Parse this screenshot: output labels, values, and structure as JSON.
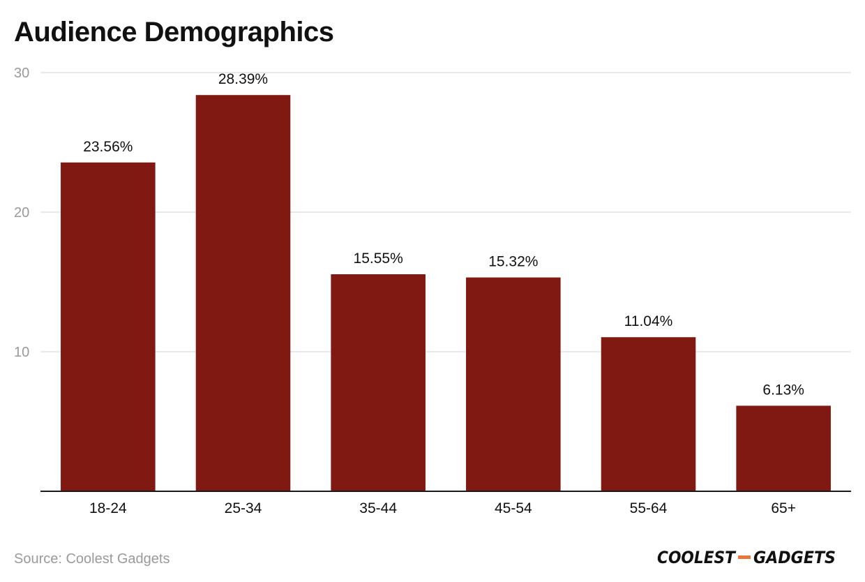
{
  "chart_data": {
    "type": "bar",
    "title": "Audience Demographics",
    "categories": [
      "18-24",
      "25-34",
      "35-44",
      "45-54",
      "55-64",
      "65+"
    ],
    "values": [
      23.56,
      28.39,
      15.55,
      15.32,
      11.04,
      6.13
    ],
    "value_labels": [
      "23.56%",
      "28.39%",
      "15.55%",
      "15.32%",
      "11.04%",
      "6.13%"
    ],
    "xlabel": "",
    "ylabel": "",
    "ylim": [
      0,
      30
    ],
    "yticks": [
      10,
      20,
      30
    ],
    "grid": true,
    "legend": "none",
    "bar_color": "#7f1911"
  },
  "footer": {
    "source": "Source: Coolest Gadgets",
    "brand_logo_text": "COOLEST-GADGETS",
    "brand_accent_color": "#e8763a"
  }
}
